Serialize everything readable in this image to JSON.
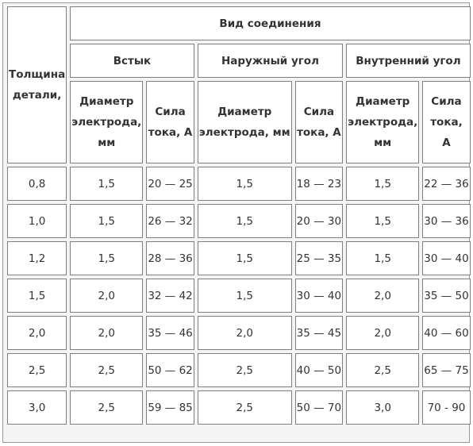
{
  "table": {
    "header": {
      "thickness_lines": [
        "Толщина",
        "детали,"
      ],
      "connection_type": "Вид соединения",
      "groups": [
        {
          "name": "Встык",
          "diameter_lines": [
            "Диаметр",
            "электрода,",
            "мм"
          ],
          "current_lines": [
            "Сила",
            "тока, А"
          ]
        },
        {
          "name": "Наружный угол",
          "diameter_lines": [
            "Диаметр",
            "электрода, мм"
          ],
          "current_lines": [
            "Сила",
            "тока, А"
          ]
        },
        {
          "name": "Внутренний угол",
          "diameter_lines": [
            "Диаметр",
            "электрода,",
            "мм"
          ],
          "current_lines": [
            "Сила",
            "тока,",
            "А"
          ]
        }
      ]
    },
    "rows": [
      [
        "0,8",
        "1,5",
        "20 — 25",
        "1,5",
        "18 — 23",
        "1,5",
        "22 — 36"
      ],
      [
        "1,0",
        "1,5",
        "26 — 32",
        "1,5",
        "20 — 30",
        "1,5",
        "30 — 36"
      ],
      [
        "1,2",
        "1,5",
        "28 — 36",
        "1,5",
        "25 — 35",
        "1,5",
        "30 — 40"
      ],
      [
        "1,5",
        "2,0",
        "32 — 42",
        "1,5",
        "30 — 40",
        "2,0",
        "35 — 50"
      ],
      [
        "2,0",
        "2,0",
        "35 — 46",
        "2,0",
        "35 — 45",
        "2,0",
        "40 — 60"
      ],
      [
        "2,5",
        "2,5",
        "50 — 62",
        "2,5",
        "40 — 50",
        "2,5",
        "65 — 75"
      ],
      [
        "3,0",
        "2,5",
        "59 — 85",
        "2,5",
        "50 — 70",
        "3,0",
        "70 - 90"
      ]
    ]
  }
}
